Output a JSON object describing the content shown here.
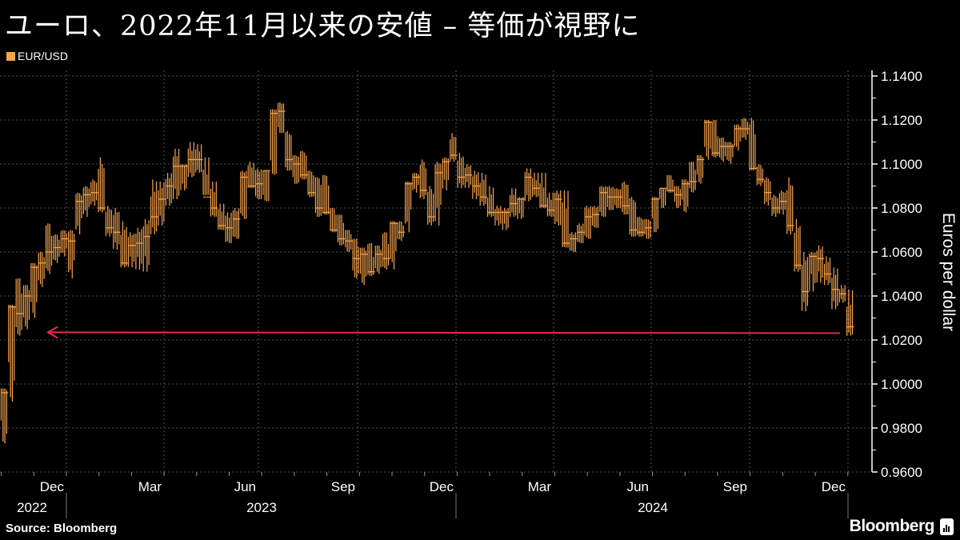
{
  "header": {
    "title": "ユーロ、2022年11月以来の安値 – 等価が視野に"
  },
  "footer": {
    "source": "Source: Bloomberg",
    "brand": "Bloomberg"
  },
  "colors": {
    "background": "#000000",
    "series": "#fba54a",
    "reference_line": "#e8284a",
    "grid": "#555555"
  },
  "chart_data": {
    "type": "ohlc",
    "title": "ユーロ、2022年11月以来の安値 – 等価が視野に",
    "legend": [
      "EUR/USD"
    ],
    "legend_position": "top-left",
    "ylabel": "Euros per dollar",
    "y_axis_position": "right",
    "ylim": [
      0.96,
      1.14
    ],
    "yticks": [
      "1.1400",
      "1.1200",
      "1.1000",
      "1.0800",
      "1.0600",
      "1.0400",
      "1.0200",
      "1.0000",
      "0.9800",
      "0.9600"
    ],
    "xticks": [
      "Dec",
      "Mar",
      "Jun",
      "Sep",
      "Dec",
      "Mar",
      "Jun",
      "Sep",
      "Dec"
    ],
    "xyears": [
      "2022",
      "2023",
      "2024"
    ],
    "grid": true,
    "reference_line": {
      "value": 1.0235,
      "style": "arrow-left"
    },
    "series": [
      {
        "name": "EUR/USD",
        "fields": [
          "week",
          "high",
          "low",
          "close"
        ],
        "bars": [
          [
            "2022-10-31",
            0.998,
            0.973,
            0.996
          ],
          [
            "2022-11-07",
            1.036,
            0.992,
            1.035
          ],
          [
            "2022-11-14",
            1.048,
            1.022,
            1.032
          ],
          [
            "2022-11-21",
            1.045,
            1.025,
            1.04
          ],
          [
            "2022-11-28",
            1.055,
            1.03,
            1.053
          ],
          [
            "2022-12-05",
            1.06,
            1.044,
            1.055
          ],
          [
            "2022-12-12",
            1.073,
            1.05,
            1.06
          ],
          [
            "2022-12-19",
            1.068,
            1.055,
            1.062
          ],
          [
            "2022-12-26",
            1.07,
            1.058,
            1.066
          ],
          [
            "2023-01-02",
            1.07,
            1.048,
            1.065
          ],
          [
            "2023-01-09",
            1.087,
            1.068,
            1.083
          ],
          [
            "2023-01-16",
            1.09,
            1.076,
            1.086
          ],
          [
            "2023-01-23",
            1.093,
            1.081,
            1.087
          ],
          [
            "2023-01-30",
            1.103,
            1.078,
            1.08
          ],
          [
            "2023-02-06",
            1.081,
            1.067,
            1.071
          ],
          [
            "2023-02-13",
            1.08,
            1.061,
            1.069
          ],
          [
            "2023-02-20",
            1.074,
            1.053,
            1.055
          ],
          [
            "2023-02-27",
            1.069,
            1.053,
            1.063
          ],
          [
            "2023-03-06",
            1.071,
            1.052,
            1.064
          ],
          [
            "2023-03-13",
            1.075,
            1.051,
            1.067
          ],
          [
            "2023-03-20",
            1.093,
            1.068,
            1.076
          ],
          [
            "2023-03-27",
            1.092,
            1.072,
            1.084
          ],
          [
            "2023-04-03",
            1.096,
            1.081,
            1.09
          ],
          [
            "2023-04-10",
            1.107,
            1.084,
            1.099
          ],
          [
            "2023-04-17",
            1.1,
            1.088,
            1.099
          ],
          [
            "2023-04-24",
            1.11,
            1.094,
            1.102
          ],
          [
            "2023-05-01",
            1.109,
            1.096,
            1.102
          ],
          [
            "2023-05-08",
            1.103,
            1.086,
            1.085
          ],
          [
            "2023-05-15",
            1.092,
            1.076,
            1.08
          ],
          [
            "2023-05-22",
            1.082,
            1.07,
            1.072
          ],
          [
            "2023-05-29",
            1.078,
            1.064,
            1.071
          ],
          [
            "2023-06-05",
            1.08,
            1.066,
            1.075
          ],
          [
            "2023-06-12",
            1.097,
            1.075,
            1.094
          ],
          [
            "2023-06-19",
            1.101,
            1.089,
            1.09
          ],
          [
            "2023-06-26",
            1.098,
            1.084,
            1.091
          ],
          [
            "2023-07-03",
            1.097,
            1.083,
            1.097
          ],
          [
            "2023-07-10",
            1.125,
            1.095,
            1.123
          ],
          [
            "2023-07-17",
            1.128,
            1.114,
            1.124
          ],
          [
            "2023-07-24",
            1.115,
            1.097,
            1.102
          ],
          [
            "2023-07-31",
            1.104,
            1.091,
            1.1
          ],
          [
            "2023-08-07",
            1.106,
            1.093,
            1.095
          ],
          [
            "2023-08-14",
            1.097,
            1.085,
            1.087
          ],
          [
            "2023-08-21",
            1.094,
            1.076,
            1.08
          ],
          [
            "2023-08-28",
            1.095,
            1.077,
            1.078
          ],
          [
            "2023-09-04",
            1.08,
            1.069,
            1.07
          ],
          [
            "2023-09-11",
            1.077,
            1.063,
            1.066
          ],
          [
            "2023-09-18",
            1.07,
            1.06,
            1.065
          ],
          [
            "2023-09-25",
            1.066,
            1.048,
            1.057
          ],
          [
            "2023-10-02",
            1.062,
            1.045,
            1.059
          ],
          [
            "2023-10-09",
            1.064,
            1.049,
            1.051
          ],
          [
            "2023-10-16",
            1.063,
            1.05,
            1.059
          ],
          [
            "2023-10-23",
            1.069,
            1.052,
            1.057
          ],
          [
            "2023-10-30",
            1.074,
            1.052,
            1.073
          ],
          [
            "2023-11-06",
            1.074,
            1.065,
            1.069
          ],
          [
            "2023-11-13",
            1.092,
            1.069,
            1.091
          ],
          [
            "2023-11-20",
            1.096,
            1.087,
            1.094
          ],
          [
            "2023-11-27",
            1.102,
            1.084,
            1.088
          ],
          [
            "2023-12-04",
            1.09,
            1.072,
            1.076
          ],
          [
            "2023-12-11",
            1.101,
            1.072,
            1.096
          ],
          [
            "2023-12-18",
            1.103,
            1.088,
            1.101
          ],
          [
            "2023-12-25",
            1.114,
            1.101,
            1.104
          ],
          [
            "2024-01-01",
            1.105,
            1.089,
            1.094
          ],
          [
            "2024-01-08",
            1.1,
            1.089,
            1.095
          ],
          [
            "2024-01-15",
            1.097,
            1.084,
            1.09
          ],
          [
            "2024-01-22",
            1.096,
            1.081,
            1.085
          ],
          [
            "2024-01-29",
            1.09,
            1.076,
            1.078
          ],
          [
            "2024-02-05",
            1.081,
            1.072,
            1.078
          ],
          [
            "2024-02-12",
            1.08,
            1.07,
            1.078
          ],
          [
            "2024-02-19",
            1.089,
            1.076,
            1.082
          ],
          [
            "2024-02-26",
            1.085,
            1.075,
            1.084
          ],
          [
            "2024-03-04",
            1.098,
            1.083,
            1.094
          ],
          [
            "2024-03-11",
            1.096,
            1.085,
            1.089
          ],
          [
            "2024-03-18",
            1.096,
            1.08,
            1.081
          ],
          [
            "2024-03-25",
            1.087,
            1.076,
            1.079
          ],
          [
            "2024-04-01",
            1.088,
            1.072,
            1.084
          ],
          [
            "2024-04-08",
            1.088,
            1.062,
            1.064
          ],
          [
            "2024-04-15",
            1.069,
            1.06,
            1.066
          ],
          [
            "2024-04-22",
            1.073,
            1.064,
            1.069
          ],
          [
            "2024-04-29",
            1.081,
            1.066,
            1.076
          ],
          [
            "2024-05-06",
            1.081,
            1.071,
            1.077
          ],
          [
            "2024-05-13",
            1.09,
            1.076,
            1.087
          ],
          [
            "2024-05-20",
            1.09,
            1.079,
            1.085
          ],
          [
            "2024-05-27",
            1.089,
            1.08,
            1.085
          ],
          [
            "2024-06-03",
            1.092,
            1.077,
            1.081
          ],
          [
            "2024-06-10",
            1.085,
            1.067,
            1.07
          ],
          [
            "2024-06-17",
            1.076,
            1.067,
            1.069
          ],
          [
            "2024-06-24",
            1.075,
            1.066,
            1.071
          ],
          [
            "2024-07-01",
            1.085,
            1.069,
            1.084
          ],
          [
            "2024-07-08",
            1.089,
            1.08,
            1.089
          ],
          [
            "2024-07-15",
            1.095,
            1.087,
            1.088
          ],
          [
            "2024-07-22",
            1.09,
            1.08,
            1.086
          ],
          [
            "2024-07-29",
            1.093,
            1.078,
            1.091
          ],
          [
            "2024-08-05",
            1.101,
            1.087,
            1.092
          ],
          [
            "2024-08-12",
            1.104,
            1.091,
            1.102
          ],
          [
            "2024-08-19",
            1.12,
            1.102,
            1.119
          ],
          [
            "2024-08-26",
            1.12,
            1.103,
            1.105
          ],
          [
            "2024-09-02",
            1.112,
            1.101,
            1.108
          ],
          [
            "2024-09-09",
            1.11,
            1.1,
            1.108
          ],
          [
            "2024-09-16",
            1.118,
            1.106,
            1.116
          ],
          [
            "2024-09-23",
            1.121,
            1.111,
            1.116
          ],
          [
            "2024-09-30",
            1.121,
            1.097,
            1.098
          ],
          [
            "2024-10-07",
            1.1,
            1.09,
            1.093
          ],
          [
            "2024-10-14",
            1.094,
            1.081,
            1.087
          ],
          [
            "2024-10-21",
            1.086,
            1.076,
            1.08
          ],
          [
            "2024-10-28",
            1.088,
            1.077,
            1.083
          ],
          [
            "2024-11-04",
            1.094,
            1.068,
            1.072
          ],
          [
            "2024-11-11",
            1.075,
            1.051,
            1.054
          ],
          [
            "2024-11-18",
            1.06,
            1.033,
            1.042
          ],
          [
            "2024-11-25",
            1.06,
            1.042,
            1.058
          ],
          [
            "2024-12-02",
            1.063,
            1.046,
            1.057
          ],
          [
            "2024-12-09",
            1.058,
            1.045,
            1.05
          ],
          [
            "2024-12-16",
            1.053,
            1.034,
            1.043
          ],
          [
            "2024-12-23",
            1.045,
            1.037,
            1.041
          ],
          [
            "2024-12-30",
            1.043,
            1.022,
            1.026
          ]
        ]
      }
    ]
  }
}
